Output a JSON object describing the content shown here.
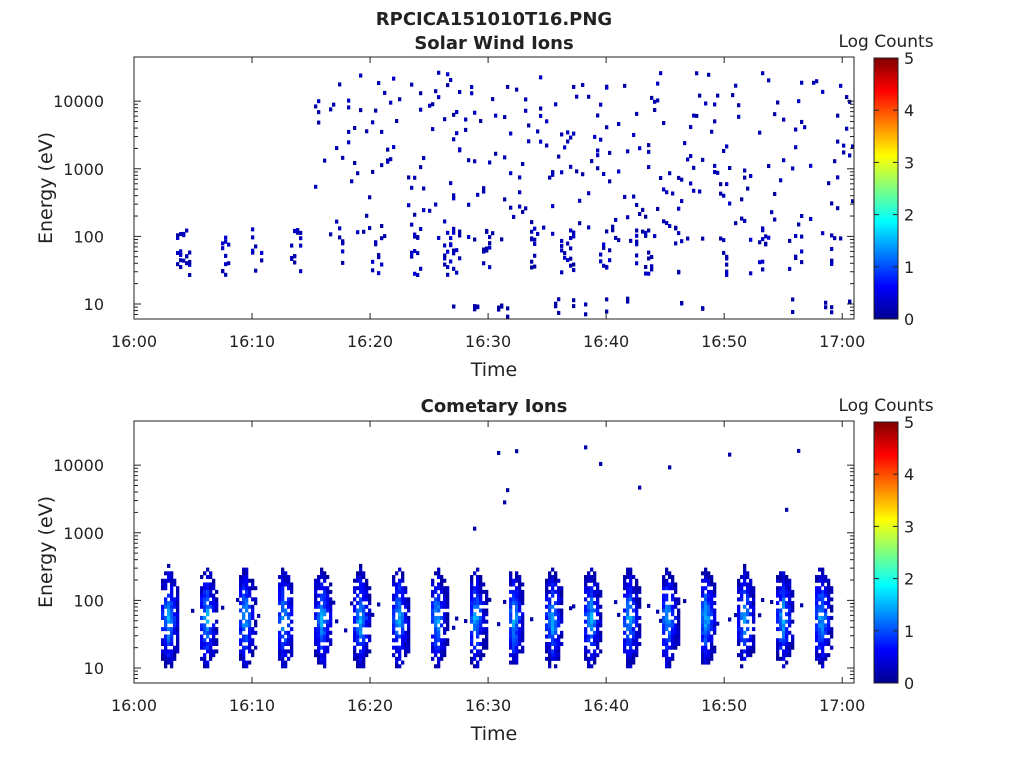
{
  "figure": {
    "title": "RPCICA151010T16.PNG"
  },
  "chart_data": [
    {
      "type": "heatmap",
      "title": "Solar Wind Ions",
      "xlabel": "Time",
      "ylabel": "Energy (eV)",
      "x_ticks": [
        "16:00",
        "16:10",
        "16:20",
        "16:30",
        "16:40",
        "16:50",
        "17:00"
      ],
      "y_ticks": [
        "10",
        "100",
        "1000",
        "10000"
      ],
      "y_scale": "log",
      "ylim_eV": [
        6,
        45000
      ],
      "xlim": [
        "16:00",
        "17:01"
      ],
      "colorbar": {
        "label": "Log Counts",
        "min": 0,
        "max": 5,
        "ticks": [
          "0",
          "1",
          "2",
          "3",
          "4",
          "5"
        ],
        "colormap": "jet"
      },
      "description_value_range": "sparse counts mostly 0-0.3 (dark blue)"
    },
    {
      "type": "heatmap",
      "title": "Cometary Ions",
      "xlabel": "Time",
      "ylabel": "Energy (eV)",
      "x_ticks": [
        "16:00",
        "16:10",
        "16:20",
        "16:30",
        "16:40",
        "16:50",
        "17:00"
      ],
      "y_ticks": [
        "10",
        "100",
        "1000",
        "10000"
      ],
      "y_scale": "log",
      "ylim_eV": [
        6,
        45000
      ],
      "xlim": [
        "16:00",
        "17:01"
      ],
      "colorbar": {
        "label": "Log Counts",
        "min": 0,
        "max": 5,
        "ticks": [
          "0",
          "1",
          "2",
          "3",
          "4",
          "5"
        ],
        "colormap": "jet"
      },
      "burst_period_min": 3.2,
      "burst_peak_log_counts": 1.4,
      "burst_energy_range_eV": [
        10,
        400
      ]
    }
  ]
}
